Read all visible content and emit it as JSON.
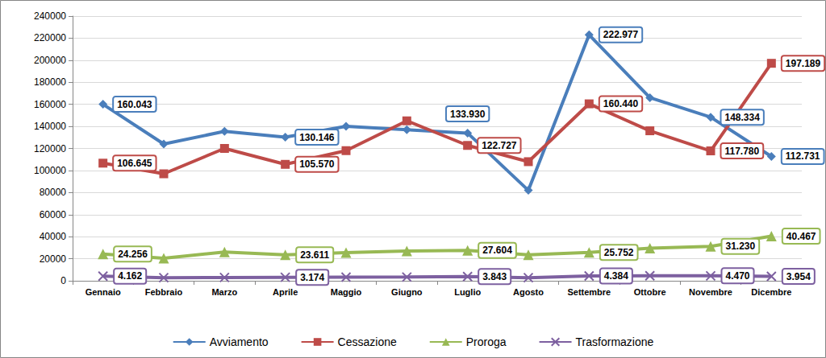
{
  "chart_data": {
    "type": "line",
    "categories": [
      "Gennaio",
      "Febbraio",
      "Marzo",
      "Aprile",
      "Maggio",
      "Giugno",
      "Luglio",
      "Agosto",
      "Settembre",
      "Ottobre",
      "Novembre",
      "Dicembre"
    ],
    "ylim": [
      0,
      240000
    ],
    "yticks": [
      0,
      20000,
      40000,
      60000,
      80000,
      100000,
      120000,
      140000,
      160000,
      180000,
      200000,
      220000,
      240000
    ],
    "grid": true,
    "legend": "bottom",
    "data_labels": true,
    "series": [
      {
        "name": "Avviamento",
        "color": "#4a7ebb",
        "marker": "diamond",
        "values": [
          160043,
          124000,
          135500,
          130146,
          140000,
          137000,
          133930,
          82000,
          222977,
          166000,
          148334,
          112731
        ],
        "value_labels": [
          "160.043",
          null,
          null,
          "130.146",
          null,
          null,
          "133.930",
          null,
          "222.977",
          null,
          "148.334",
          "112.731"
        ]
      },
      {
        "name": "Cessazione",
        "color": "#be4b48",
        "marker": "square",
        "values": [
          106645,
          97000,
          120000,
          105570,
          118000,
          145000,
          122727,
          108000,
          160440,
          136000,
          117780,
          197189
        ],
        "value_labels": [
          "106.645",
          null,
          null,
          "105.570",
          null,
          null,
          "122.727",
          null,
          "160.440",
          null,
          "117.780",
          "197.189"
        ]
      },
      {
        "name": "Proroga",
        "color": "#98b954",
        "marker": "triangle",
        "values": [
          24256,
          20500,
          26000,
          23611,
          25500,
          27000,
          27604,
          23500,
          25752,
          29500,
          31230,
          40467
        ],
        "value_labels": [
          "24.256",
          null,
          null,
          "23.611",
          null,
          null,
          "27.604",
          null,
          "25.752",
          null,
          "31.230",
          "40.467"
        ]
      },
      {
        "name": "Trasformazione",
        "color": "#7d60a0",
        "marker": "x",
        "values": [
          4162,
          2800,
          3000,
          3174,
          3300,
          3400,
          3843,
          2800,
          4384,
          4500,
          4470,
          3954
        ],
        "value_labels": [
          "4.162",
          null,
          null,
          "3.174",
          null,
          null,
          "3.843",
          null,
          "4.384",
          null,
          "4.470",
          "3.954"
        ]
      }
    ]
  }
}
